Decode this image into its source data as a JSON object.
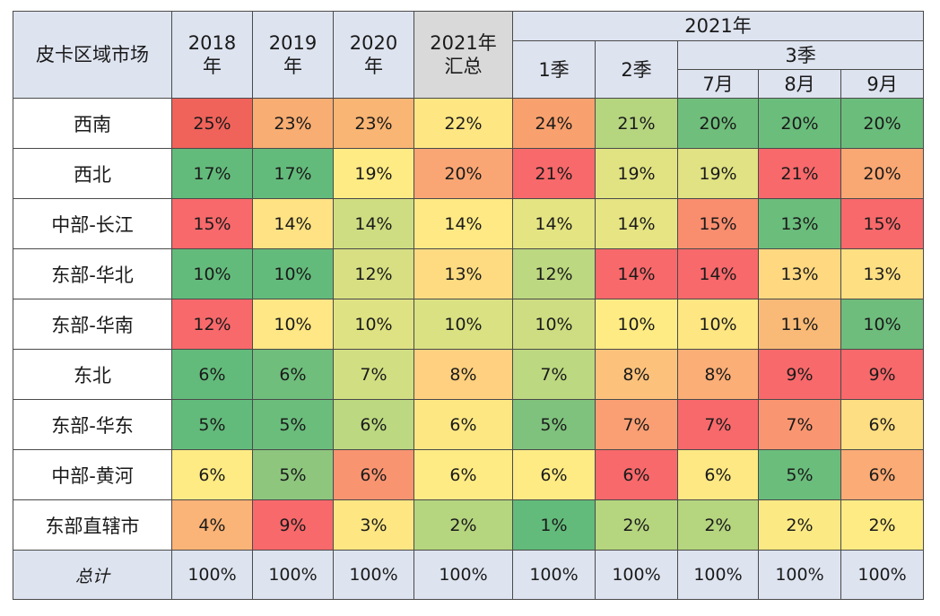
{
  "chart_data": {
    "type": "table",
    "corner_label": "皮卡区域市场",
    "group_header": "2021年",
    "subgroup_header": "3季",
    "column_headers": {
      "y2018": [
        "2018",
        "年"
      ],
      "y2019": [
        "2019",
        "年"
      ],
      "y2020": [
        "2020",
        "年"
      ],
      "y2021": [
        "2021年",
        "汇总"
      ],
      "q1": "1季",
      "q2": "2季",
      "m7": "7月",
      "m8": "8月",
      "m9": "9月"
    },
    "columns": [
      "2018年",
      "2019年",
      "2020年",
      "2021年汇总",
      "1季",
      "2季",
      "7月",
      "8月",
      "9月"
    ],
    "rows": [
      {
        "label": "西南",
        "values": [
          "25%",
          "23%",
          "23%",
          "22%",
          "24%",
          "21%",
          "20%",
          "20%",
          "20%"
        ]
      },
      {
        "label": "西北",
        "values": [
          "17%",
          "17%",
          "19%",
          "20%",
          "21%",
          "19%",
          "19%",
          "21%",
          "20%"
        ]
      },
      {
        "label": "中部-长江",
        "values": [
          "15%",
          "14%",
          "14%",
          "14%",
          "14%",
          "14%",
          "15%",
          "13%",
          "15%"
        ]
      },
      {
        "label": "东部-华北",
        "values": [
          "10%",
          "10%",
          "12%",
          "13%",
          "12%",
          "14%",
          "14%",
          "13%",
          "13%"
        ]
      },
      {
        "label": "东部-华南",
        "values": [
          "12%",
          "10%",
          "10%",
          "10%",
          "10%",
          "10%",
          "10%",
          "11%",
          "10%"
        ]
      },
      {
        "label": "东北",
        "values": [
          "6%",
          "6%",
          "7%",
          "8%",
          "7%",
          "8%",
          "8%",
          "9%",
          "9%"
        ]
      },
      {
        "label": "东部-华东",
        "values": [
          "5%",
          "5%",
          "6%",
          "6%",
          "5%",
          "7%",
          "7%",
          "7%",
          "6%"
        ]
      },
      {
        "label": "中部-黄河",
        "values": [
          "6%",
          "5%",
          "6%",
          "6%",
          "6%",
          "6%",
          "6%",
          "5%",
          "6%"
        ]
      },
      {
        "label": "东部直辖市",
        "values": [
          "4%",
          "9%",
          "3%",
          "2%",
          "1%",
          "2%",
          "2%",
          "2%",
          "2%"
        ]
      }
    ],
    "total": {
      "label": "总计",
      "values": [
        "100%",
        "100%",
        "100%",
        "100%",
        "100%",
        "100%",
        "100%",
        "100%",
        "100%"
      ]
    },
    "cell_colors": [
      [
        "#f0635a",
        "#f8ad72",
        "#f9b573",
        "#fee683",
        "#f9a16e",
        "#b5d57f",
        "#70be7c",
        "#6bbd7c",
        "#6bbd7c"
      ],
      [
        "#63bb7b",
        "#63bb7b",
        "#feeb84",
        "#faa674",
        "#f8696b",
        "#e1e383",
        "#e0e283",
        "#f8696b",
        "#f9a773"
      ],
      [
        "#f8696b",
        "#fee283",
        "#cfdd82",
        "#ffe984",
        "#e4e483",
        "#e6e483",
        "#f98e6f",
        "#6bbd7c",
        "#f8696b"
      ],
      [
        "#63bb7b",
        "#63bb7b",
        "#d7df82",
        "#fedb81",
        "#bcd880",
        "#f8696b",
        "#f8696b",
        "#ffd880",
        "#fedf82"
      ],
      [
        "#f8696b",
        "#fee784",
        "#dfe283",
        "#d9e182",
        "#cfdd82",
        "#feeb84",
        "#fee683",
        "#f9ba77",
        "#6ebd7c"
      ],
      [
        "#63bb7b",
        "#6fbe7c",
        "#d1de82",
        "#ffd07f",
        "#bcd880",
        "#fcc27b",
        "#fbae76",
        "#f8696b",
        "#f8696b"
      ],
      [
        "#63bb7b",
        "#6bbd7c",
        "#bcd880",
        "#fde783",
        "#7fc27d",
        "#fa9f73",
        "#f8696b",
        "#f99671",
        "#fede82"
      ],
      [
        "#feeb84",
        "#8ec67e",
        "#f99471",
        "#feeb84",
        "#feeb84",
        "#f8696b",
        "#fde883",
        "#6bbd7c",
        "#fbab75"
      ],
      [
        "#fbb477",
        "#f8696b",
        "#fee683",
        "#b5d57f",
        "#63bb7b",
        "#b5d57f",
        "#b5d57f",
        "#fbe983",
        "#feeb84"
      ]
    ]
  }
}
